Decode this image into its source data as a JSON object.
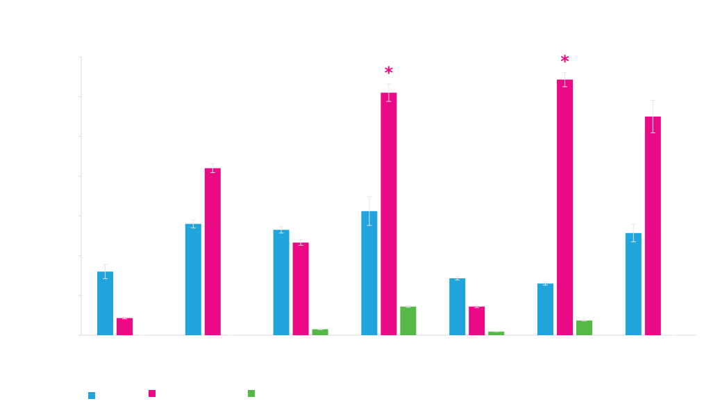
{
  "chart_data": {
    "type": "bar",
    "title": "",
    "xlabel": "",
    "ylabel": "",
    "ylim": [
      0,
      7
    ],
    "yticks": [
      0,
      1,
      2,
      3,
      4,
      5,
      6,
      7
    ],
    "grid": false,
    "categories": [
      "",
      "",
      "",
      "",
      "",
      "",
      ""
    ],
    "series": [
      {
        "color": "#1fa4dc",
        "values": [
          1.6,
          2.8,
          2.65,
          3.12,
          1.43,
          1.3,
          2.57
        ],
        "errors": [
          0.18,
          0.1,
          0.08,
          0.36,
          0.04,
          0.04,
          0.22
        ]
      },
      {
        "color": "#eb0a86",
        "values": [
          0.43,
          4.2,
          2.33,
          6.1,
          0.72,
          6.43,
          5.5
        ],
        "errors": [
          0.02,
          0.11,
          0.07,
          0.22,
          0.03,
          0.18,
          0.41
        ]
      },
      {
        "color": "#56b947",
        "values": [
          0.0,
          0.0,
          0.15,
          0.72,
          0.09,
          0.37,
          0.0
        ],
        "errors": [
          0.0,
          0.0,
          0.01,
          0.02,
          0.0,
          0.01,
          0.0
        ]
      }
    ],
    "annotations": [
      {
        "category_index": 3,
        "series_index": 1,
        "text": "*",
        "color": "#eb0a86"
      },
      {
        "category_index": 5,
        "series_index": 1,
        "text": "*",
        "color": "#eb0a86"
      }
    ],
    "legend_position": "bottom-left"
  }
}
